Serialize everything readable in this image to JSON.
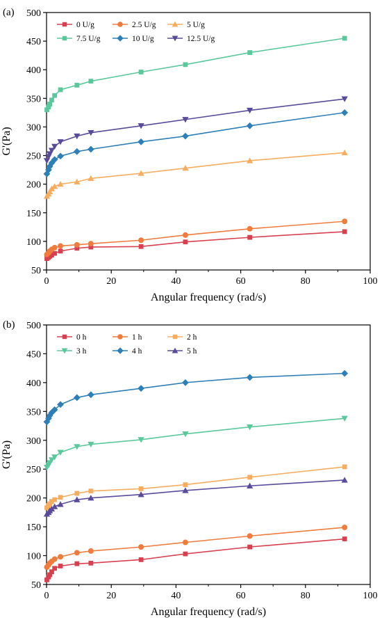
{
  "chart_data": [
    {
      "type": "line",
      "panel_label": "(a)",
      "xlabel": "Angular frequency (rad/s)",
      "ylabel": "G'(Pa)",
      "xlim": [
        0,
        100
      ],
      "ylim": [
        50,
        500
      ],
      "xticks": [
        0,
        20,
        40,
        60,
        80,
        100
      ],
      "yticks": [
        50,
        100,
        150,
        200,
        250,
        300,
        350,
        400,
        450,
        500
      ],
      "grid": false,
      "legend_position": "top-left",
      "x": [
        0.1,
        0.63,
        1.0,
        1.6,
        2.5,
        4.3,
        9.4,
        13.7,
        29.2,
        42.9,
        62.8,
        92.1
      ],
      "series": [
        {
          "name": "0 U/g",
          "color": "#d9404f",
          "marker": "square",
          "values": [
            70,
            72,
            74,
            76,
            79,
            83,
            88,
            90,
            91,
            99,
            107,
            117
          ]
        },
        {
          "name": "2.5 U/g",
          "color": "#ef7c3d",
          "marker": "circle",
          "values": [
            77,
            80,
            83,
            86,
            89,
            92,
            94,
            96,
            102,
            111,
            122,
            135
          ]
        },
        {
          "name": "5 U/g",
          "color": "#f7ad5f",
          "marker": "triangle-up",
          "values": [
            179,
            183,
            187,
            192,
            196,
            200,
            204,
            210,
            219,
            228,
            241,
            255
          ]
        },
        {
          "name": "7.5 U/g",
          "color": "#5bc89c",
          "marker": "square",
          "values": [
            330,
            335,
            340,
            347,
            355,
            365,
            373,
            380,
            396,
            409,
            430,
            455
          ]
        },
        {
          "name": "10 U/g",
          "color": "#2e7fb8",
          "marker": "diamond",
          "values": [
            218,
            225,
            231,
            237,
            243,
            249,
            257,
            261,
            274,
            284,
            302,
            325
          ]
        },
        {
          "name": "12.5 U/g",
          "color": "#5a4a9c",
          "marker": "triangle-down",
          "values": [
            241,
            248,
            253,
            259,
            266,
            274,
            284,
            290,
            302,
            313,
            329,
            349
          ]
        }
      ]
    },
    {
      "type": "line",
      "panel_label": "(b)",
      "xlabel": "Angular frequency (rad/s)",
      "ylabel": "G'(Pa)",
      "xlim": [
        0,
        100
      ],
      "ylim": [
        50,
        500
      ],
      "xticks": [
        0,
        20,
        40,
        60,
        80,
        100
      ],
      "yticks": [
        50,
        100,
        150,
        200,
        250,
        300,
        350,
        400,
        450,
        500
      ],
      "grid": false,
      "legend_position": "top-left",
      "x": [
        0.1,
        0.63,
        1.0,
        1.6,
        2.5,
        4.3,
        9.4,
        13.7,
        29.2,
        42.9,
        62.8,
        92.1
      ],
      "series": [
        {
          "name": "0 h",
          "color": "#d9404f",
          "marker": "square",
          "values": [
            58,
            63,
            67,
            72,
            78,
            82,
            86,
            87,
            93,
            103,
            115,
            129
          ]
        },
        {
          "name": "1 h",
          "color": "#ef7c3d",
          "marker": "circle",
          "values": [
            80,
            84,
            87,
            90,
            94,
            98,
            105,
            108,
            115,
            123,
            134,
            149
          ]
        },
        {
          "name": "2 h",
          "color": "#f7ad5f",
          "marker": "square",
          "values": [
            183,
            187,
            190,
            194,
            197,
            201,
            208,
            212,
            216,
            223,
            236,
            254
          ]
        },
        {
          "name": "3 h",
          "color": "#5bc89c",
          "marker": "triangle-down",
          "values": [
            253,
            257,
            261,
            266,
            271,
            279,
            289,
            293,
            301,
            311,
            323,
            338
          ]
        },
        {
          "name": "4 h",
          "color": "#2e7fb8",
          "marker": "diamond",
          "values": [
            332,
            338,
            343,
            348,
            353,
            362,
            374,
            379,
            390,
            400,
            409,
            416
          ]
        },
        {
          "name": "5 h",
          "color": "#5a4a9c",
          "marker": "triangle-up",
          "values": [
            172,
            175,
            178,
            181,
            185,
            189,
            197,
            200,
            206,
            213,
            221,
            231
          ]
        }
      ]
    }
  ]
}
